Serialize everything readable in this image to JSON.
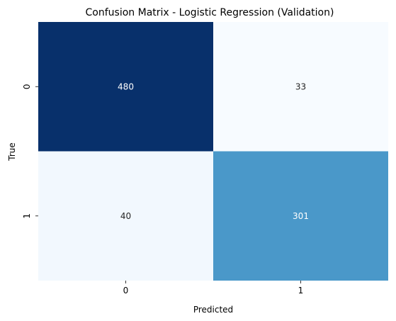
{
  "chart_data": {
    "type": "heatmap",
    "title": "Confusion Matrix - Logistic Regression (Validation)",
    "xlabel": "Predicted",
    "ylabel": "True",
    "x_categories": [
      "0",
      "1"
    ],
    "y_categories": [
      "0",
      "1"
    ],
    "values": [
      [
        480,
        33
      ],
      [
        40,
        301
      ]
    ],
    "colormap": "Blues",
    "colorbar": false,
    "grid": false,
    "annotations": true,
    "colors": {
      "min": "#f7fbff",
      "mid": "#4a98c9",
      "max": "#08306b",
      "text_dark": "#262626",
      "text_light": "#ffffff"
    }
  }
}
